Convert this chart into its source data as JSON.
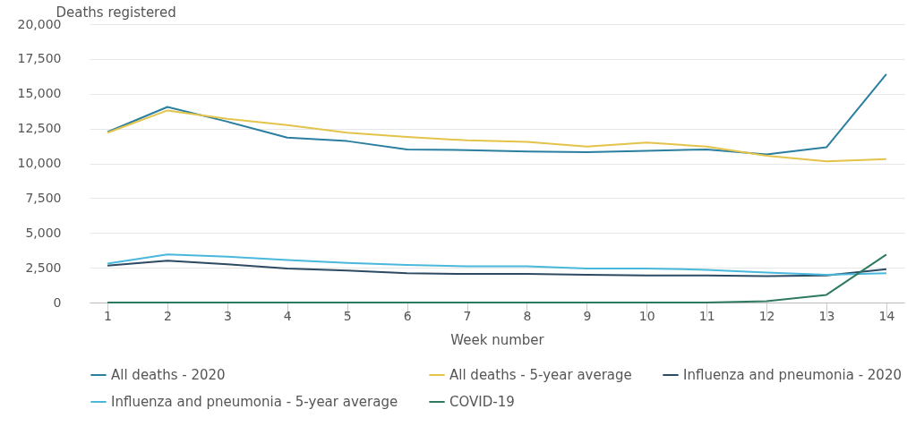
{
  "chart_data": {
    "type": "line",
    "xlabel": "Week number",
    "ylabel": "Deaths registered",
    "x": [
      1,
      2,
      3,
      4,
      5,
      6,
      7,
      8,
      9,
      10,
      11,
      12,
      13,
      14
    ],
    "xlim": [
      0.7,
      14.3
    ],
    "xticks": [
      1,
      2,
      3,
      4,
      5,
      6,
      7,
      8,
      9,
      10,
      11,
      12,
      13,
      14
    ],
    "ylim": [
      0,
      20000
    ],
    "yticks": [
      {
        "value": 0,
        "label": "0"
      },
      {
        "value": 2500,
        "label": "2,500"
      },
      {
        "value": 5000,
        "label": "5,000"
      },
      {
        "value": 7500,
        "label": "7,500"
      },
      {
        "value": 10000,
        "label": "10,000"
      },
      {
        "value": 12500,
        "label": "12,500"
      },
      {
        "value": 15000,
        "label": "15,000"
      },
      {
        "value": 17500,
        "label": "17,500"
      },
      {
        "value": 20000,
        "label": "20,000"
      }
    ],
    "grid": "y",
    "legend": "bottom",
    "marker": "none",
    "line_style": "solid",
    "series": [
      {
        "name": "All deaths - 2020",
        "color": "#2a7fa0",
        "values": [
          12250,
          14050,
          13000,
          11850,
          11600,
          11000,
          10950,
          10850,
          10800,
          10900,
          11000,
          10650,
          11150,
          16400
        ]
      },
      {
        "name": "All deaths - 5-year average",
        "color": "#e3c34a",
        "values": [
          12200,
          13800,
          13200,
          12750,
          12200,
          11900,
          11650,
          11550,
          11200,
          11500,
          11200,
          10550,
          10150,
          10300
        ]
      },
      {
        "name": "Influenza and pneumonia - 2020",
        "color": "#2d4a63",
        "values": [
          2650,
          3000,
          2750,
          2450,
          2300,
          2100,
          2050,
          2050,
          2000,
          1950,
          1950,
          1900,
          1950,
          2400
        ]
      },
      {
        "name": "Influenza and pneumonia - 5-year average",
        "color": "#4ab8dc",
        "values": [
          2800,
          3450,
          3300,
          3050,
          2850,
          2700,
          2600,
          2600,
          2450,
          2450,
          2350,
          2150,
          2000,
          2100
        ]
      },
      {
        "name": "COVID-19",
        "color": "#2f7a5f",
        "values": [
          0,
          0,
          0,
          0,
          0,
          0,
          0,
          0,
          0,
          0,
          0,
          100,
          550,
          3450
        ]
      }
    ]
  }
}
